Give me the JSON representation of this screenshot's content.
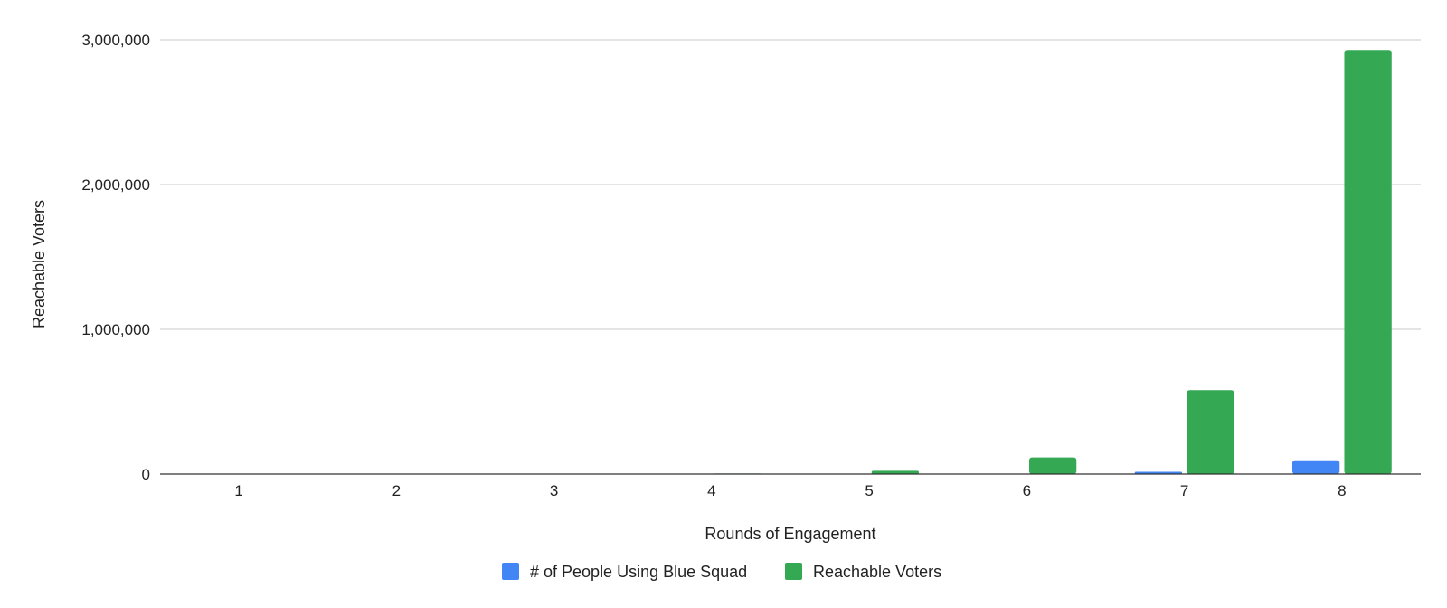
{
  "chart_data": {
    "type": "bar",
    "title": "",
    "xlabel": "Rounds of Engagement",
    "ylabel": "Reachable Voters",
    "categories": [
      "1",
      "2",
      "3",
      "4",
      "5",
      "6",
      "7",
      "8"
    ],
    "series": [
      {
        "name": "# of People Using Blue Squad",
        "color": "#4285f4",
        "values": [
          1,
          5,
          25,
          125,
          625,
          3125,
          15625,
          95000
        ]
      },
      {
        "name": "Reachable Voters",
        "color": "#34a853",
        "values": [
          30,
          150,
          750,
          3750,
          23000,
          115000,
          580000,
          2930000
        ]
      }
    ],
    "ylim": [
      0,
      3000000
    ],
    "y_ticks": [
      0,
      1000000,
      2000000,
      3000000
    ],
    "y_tick_labels": [
      "0",
      "1,000,000",
      "2,000,000",
      "3,000,000"
    ],
    "grid": true,
    "legend_position": "bottom"
  }
}
